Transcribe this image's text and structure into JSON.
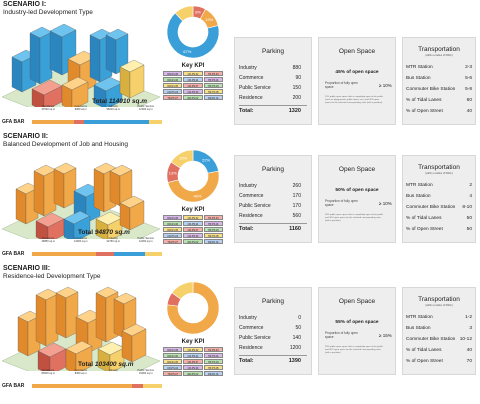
{
  "scenarios": [
    {
      "title": "SCENARIO I:",
      "subtitle": "Industry-led Development Type",
      "total_label": "Total",
      "total_value": "114010 sq.m",
      "gfa_label": "GFA BAR",
      "gfa_segments": [
        {
          "label": "Residence",
          "value": "37000 sq.m",
          "color": "#f0a848"
        },
        {
          "label": "Commerce",
          "value": "9000 sq.m",
          "color": "#e07060"
        },
        {
          "label": "Industry",
          "value": "56010 sq.m",
          "color": "#3a9fd8"
        },
        {
          "label": "Public Service",
          "value": "12000 sq.m",
          "color": "#f6d06a"
        }
      ],
      "kpi_title": "Key KPI",
      "donut_labels": [
        "8%",
        "13%",
        "67%"
      ],
      "donut_colors": [
        "#e07060",
        "#f0a848",
        "#3a9fd8"
      ],
      "parking": {
        "title": "Parking",
        "rows": [
          {
            "k": "Industry",
            "v": "880"
          },
          {
            "k": "Commerce",
            "v": "90"
          },
          {
            "k": "Public Service",
            "v": "150"
          },
          {
            "k": "Residence",
            "v": "200"
          }
        ],
        "total_k": "Total:",
        "total_v": "1320"
      },
      "open_space": {
        "title": "Open Space",
        "main": "45% of open space",
        "prop_label": "Proportion of fully open space",
        "prop_value": "≥ 10%",
        "note": "15% public open space that is completely open to the public (such as playgrounds, public lawns, etc.) and 30% open space for the selected corresponding units (with a partition)"
      },
      "transport": {
        "title": "Transportation",
        "subtitle": "(within a radius of 500m)",
        "rows": [
          {
            "k": "MTR Station",
            "v": "2-3"
          },
          {
            "k": "Bus Station",
            "v": "5-6"
          },
          {
            "k": "Commuter Bike Station",
            "v": "5-8"
          },
          {
            "k": "% of Tidal Lanes",
            "v": "60"
          },
          {
            "k": "% of Open Street",
            "v": "40"
          }
        ]
      }
    },
    {
      "title": "SCENARIO II:",
      "subtitle": "Balanced Development of Job and Housing",
      "total_label": "Total",
      "total_value": "94870 sq.m",
      "gfa_label": "GFA BAR",
      "gfa_segments": [
        {
          "label": "Residence",
          "value": "46850 sq.m",
          "color": "#f0a848"
        },
        {
          "label": "Commerce",
          "value": "13000 sq.m",
          "color": "#e07060"
        },
        {
          "label": "Industry",
          "value": "22760 sq.m",
          "color": "#3a9fd8"
        },
        {
          "label": "Public Service",
          "value": "12260 sq.m",
          "color": "#f6d06a"
        }
      ],
      "kpi_title": "Key KPI",
      "donut_labels": [
        "22%",
        "49%",
        "13%",
        "15%"
      ],
      "donut_colors": [
        "#3a9fd8",
        "#f0a848",
        "#e07060",
        "#f6d06a"
      ],
      "parking": {
        "title": "Parking",
        "rows": [
          {
            "k": "Industry",
            "v": "260"
          },
          {
            "k": "Commerce",
            "v": "170"
          },
          {
            "k": "Public Service",
            "v": "170"
          },
          {
            "k": "Residence",
            "v": "560"
          }
        ],
        "total_k": "Total:",
        "total_v": "1160"
      },
      "open_space": {
        "title": "Open Space",
        "main": "50% of open space",
        "prop_label": "Proportion of fully open space",
        "prop_value": "≥ 10%",
        "note": "20% public open space that is completely open to the public and 30% open space for the selected corresponding units (with a partition)"
      },
      "transport": {
        "title": "Transportation",
        "subtitle": "(within a radius of 500m)",
        "rows": [
          {
            "k": "MTR Station",
            "v": "2"
          },
          {
            "k": "Bus Station",
            "v": "4"
          },
          {
            "k": "Commuter Bike Station",
            "v": "8-10"
          },
          {
            "k": "% of Tidal Lanes",
            "v": "50"
          },
          {
            "k": "% of Open Street",
            "v": "50"
          }
        ]
      }
    },
    {
      "title": "SCENARIO III:",
      "subtitle": "Residence-led Development Type",
      "total_label": "Total",
      "total_value": "103400 sq.m",
      "gfa_label": "GFA BAR",
      "gfa_segments": [
        {
          "label": "Residence",
          "value": "80000 sq.m",
          "color": "#f0a848"
        },
        {
          "label": "Commerce",
          "value": "8400 sq.m",
          "color": "#e07060"
        },
        {
          "label": "Industry",
          "value": "",
          "color": "#3a9fd8"
        },
        {
          "label": "Public Service",
          "value": "15000 sq.m",
          "color": "#f6d06a"
        }
      ],
      "kpi_title": "Key KPI",
      "donut_labels": [],
      "donut_colors": [
        "#f0a848",
        "#e07060",
        "#f6d06a"
      ],
      "parking": {
        "title": "Parking",
        "rows": [
          {
            "k": "Industry",
            "v": "0"
          },
          {
            "k": "Commerce",
            "v": "50"
          },
          {
            "k": "Public Service",
            "v": "140"
          },
          {
            "k": "Residence",
            "v": "1200"
          }
        ],
        "total_k": "Total:",
        "total_v": "1390"
      },
      "open_space": {
        "title": "Open Space",
        "main": "55% of open space",
        "prop_label": "Proportion of fully open space",
        "prop_value": "≥ 15%",
        "note": "25% public open space that is completely open to the public and 30% open space for the selected corresponding units (with a partition)"
      },
      "transport": {
        "title": "Transportation",
        "subtitle": "(within a radius of 500m)",
        "rows": [
          {
            "k": "MTR Station",
            "v": "1-2"
          },
          {
            "k": "Bus Station",
            "v": "3"
          },
          {
            "k": "Commuter Bike Station",
            "v": "10-12"
          },
          {
            "k": "% of Tidal Lanes",
            "v": "40"
          },
          {
            "k": "% of Open Street",
            "v": "70"
          }
        ]
      }
    }
  ],
  "kpi_cells": [
    "DR-R1.08",
    "CR-PS.02",
    "TR-PS.03",
    "DR-R1.06",
    "CR-PS.01",
    "HP-PS.01",
    "DR-R1.05",
    "CR-PS.07",
    "HP-PS.03",
    "CR-PS.04",
    "CR-PS.09",
    "HP-PS.05",
    "TR-PS.07",
    "ER-PS.02",
    "DR-R1.01"
  ],
  "kpi_cell_colors": [
    "#d8b8e8",
    "#f8e08a",
    "#f4b0a8",
    "#b8e0b0",
    "#b8d0f0"
  ]
}
